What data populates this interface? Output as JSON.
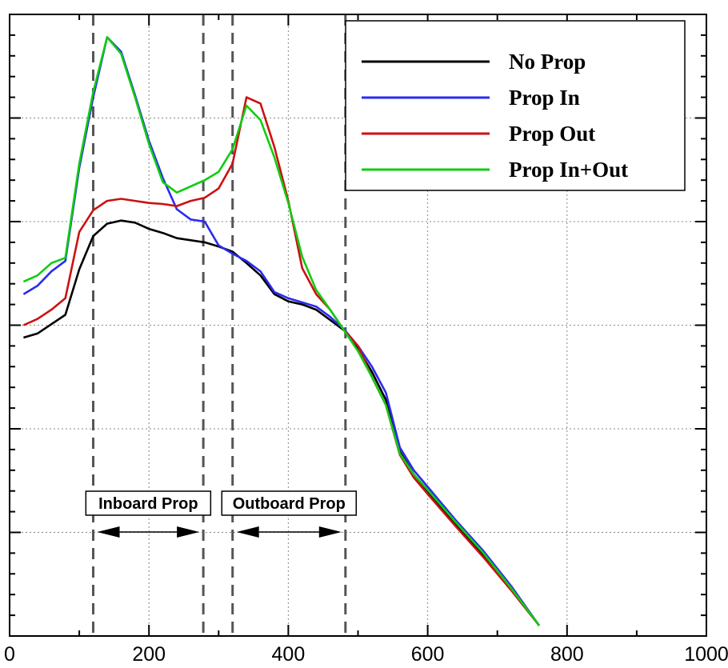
{
  "chart_data": {
    "type": "line",
    "title": "",
    "xlabel": "",
    "ylabel": "",
    "xlim": [
      0,
      1000
    ],
    "ylim": [
      0,
      6
    ],
    "x_ticks": [
      0,
      200,
      400,
      600,
      800,
      1000
    ],
    "x_tick_labels": [
      "0",
      "200",
      "400",
      "600",
      "800",
      "1000"
    ],
    "y_ticks": [
      0,
      1,
      2,
      3,
      4,
      5,
      6
    ],
    "y_tick_labels": [],
    "grid": true,
    "legend_position": "top-right",
    "series": [
      {
        "name": "No Prop",
        "color": "#000000",
        "x": [
          20,
          40,
          60,
          80,
          100,
          120,
          140,
          160,
          180,
          200,
          220,
          240,
          260,
          280,
          300,
          320,
          340,
          360,
          380,
          400,
          420,
          440,
          460,
          480,
          500,
          520,
          540,
          560,
          580,
          600,
          640,
          680,
          720,
          760
        ],
        "y": [
          2.88,
          2.92,
          3.01,
          3.1,
          3.54,
          3.86,
          3.98,
          4.01,
          3.99,
          3.93,
          3.89,
          3.84,
          3.82,
          3.8,
          3.76,
          3.71,
          3.6,
          3.48,
          3.3,
          3.23,
          3.2,
          3.15,
          3.05,
          2.95,
          2.77,
          2.55,
          2.28,
          1.78,
          1.56,
          1.4,
          1.08,
          0.78,
          0.45,
          0.1
        ]
      },
      {
        "name": "Prop In",
        "color": "#2b2bf0",
        "x": [
          20,
          40,
          60,
          80,
          100,
          120,
          140,
          160,
          180,
          200,
          220,
          240,
          260,
          280,
          300,
          320,
          340,
          360,
          380,
          400,
          420,
          440,
          460,
          480,
          500,
          520,
          540,
          560,
          580,
          600,
          640,
          680,
          720,
          760
        ],
        "y": [
          3.3,
          3.38,
          3.52,
          3.62,
          4.52,
          5.2,
          5.78,
          5.64,
          5.22,
          4.78,
          4.42,
          4.12,
          4.02,
          4.0,
          3.77,
          3.69,
          3.62,
          3.52,
          3.32,
          3.26,
          3.22,
          3.18,
          3.08,
          2.96,
          2.8,
          2.6,
          2.35,
          1.82,
          1.6,
          1.44,
          1.12,
          0.82,
          0.48,
          0.1
        ]
      },
      {
        "name": "Prop Out",
        "color": "#cc1111",
        "x": [
          20,
          40,
          60,
          80,
          100,
          120,
          140,
          160,
          180,
          200,
          220,
          240,
          260,
          280,
          300,
          320,
          340,
          360,
          380,
          400,
          420,
          440,
          460,
          480,
          500,
          520,
          540,
          560,
          580,
          600,
          640,
          680,
          720,
          760
        ],
        "y": [
          3.0,
          3.06,
          3.15,
          3.26,
          3.9,
          4.11,
          4.2,
          4.22,
          4.2,
          4.18,
          4.17,
          4.15,
          4.2,
          4.23,
          4.32,
          4.56,
          5.2,
          5.14,
          4.72,
          4.2,
          3.55,
          3.3,
          3.15,
          2.95,
          2.8,
          2.5,
          2.23,
          1.75,
          1.53,
          1.37,
          1.06,
          0.76,
          0.44,
          0.1
        ]
      },
      {
        "name": "Prop In+Out",
        "color": "#11cc11",
        "x": [
          20,
          40,
          60,
          80,
          100,
          120,
          140,
          160,
          180,
          200,
          220,
          240,
          260,
          280,
          300,
          320,
          340,
          360,
          380,
          400,
          420,
          440,
          460,
          480,
          500,
          520,
          540,
          560,
          580,
          600,
          640,
          680,
          720,
          760
        ],
        "y": [
          3.42,
          3.48,
          3.6,
          3.65,
          4.56,
          5.25,
          5.78,
          5.62,
          5.2,
          4.75,
          4.38,
          4.28,
          4.34,
          4.4,
          4.48,
          4.7,
          5.12,
          4.98,
          4.62,
          4.18,
          3.66,
          3.34,
          3.15,
          2.95,
          2.75,
          2.5,
          2.23,
          1.76,
          1.56,
          1.41,
          1.1,
          0.8,
          0.46,
          0.1
        ]
      }
    ],
    "vertical_lines": [
      120,
      278,
      320,
      482
    ],
    "annotations": [
      {
        "text": "Inboard Prop",
        "x_start": 120,
        "x_end": 278
      },
      {
        "text": "Outboard Prop",
        "x_start": 320,
        "x_end": 482
      }
    ]
  }
}
